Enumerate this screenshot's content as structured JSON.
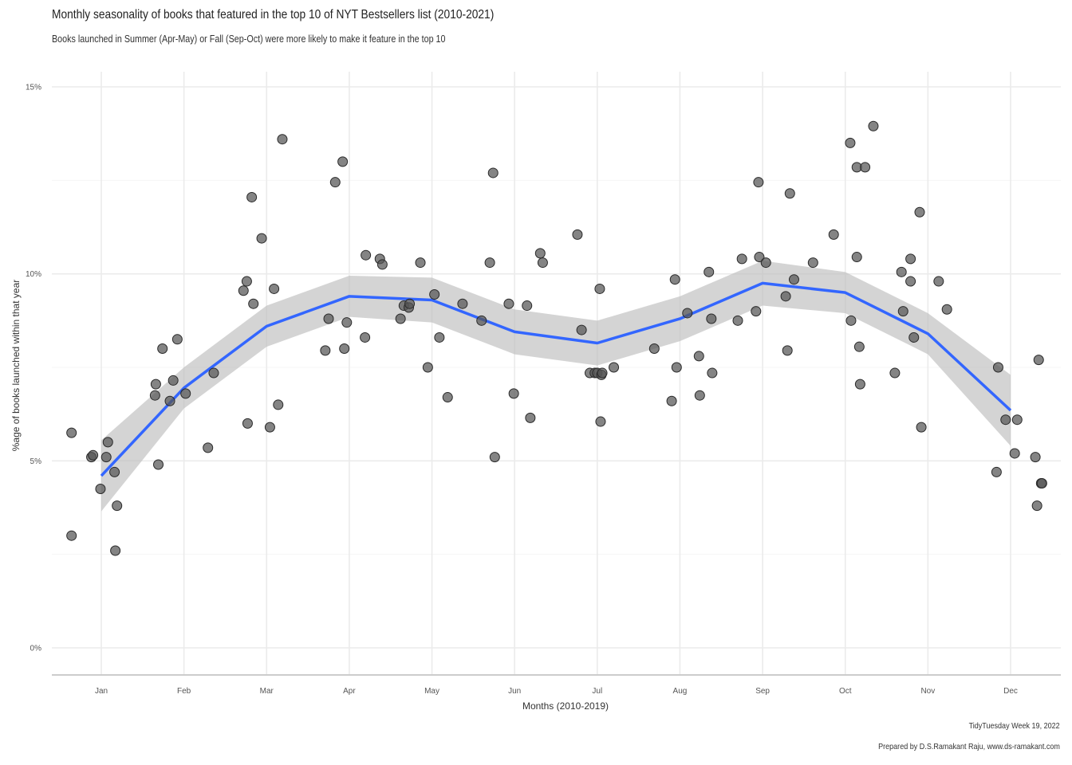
{
  "chart_data": {
    "type": "scatter",
    "title": "Monthly seasonality of books that featured in the top 10 of NYT Bestsellers list (2010-2021)",
    "subtitle": "Books launched in Summer (Apr-May) or Fall (Sep-Oct) were more likely to make it feature in the top 10",
    "xlabel": "Months (2010-2019)",
    "ylabel": "%age of books launched within that year",
    "caption": [
      "TidyTuesday Week 19, 2022",
      "Prepared by D.S.Ramakant Raju, www.ds-ramakant.com"
    ],
    "x_categories": [
      "Jan",
      "Feb",
      "Mar",
      "Apr",
      "May",
      "Jun",
      "Jul",
      "Aug",
      "Sep",
      "Oct",
      "Nov",
      "Dec"
    ],
    "y_ticks": [
      "0%",
      "5%",
      "10%",
      "15%"
    ],
    "y_tick_values": [
      0,
      5,
      10,
      15
    ],
    "ylim": [
      -0.7,
      15.5
    ],
    "xlim": [
      0.4,
      12.6
    ],
    "grid": true,
    "colors": {
      "points": "#555555",
      "trend": "#3366ff",
      "ribbon": "#bdbdbd",
      "grid": "#ebebeb"
    },
    "points": [
      [
        0.64,
        5.75
      ],
      [
        0.64,
        3.0
      ],
      [
        0.88,
        5.1
      ],
      [
        0.9,
        5.15
      ],
      [
        0.99,
        4.25
      ],
      [
        1.06,
        5.1
      ],
      [
        1.08,
        5.5
      ],
      [
        1.16,
        4.7
      ],
      [
        1.17,
        2.6
      ],
      [
        1.19,
        3.8
      ],
      [
        1.65,
        6.75
      ],
      [
        1.66,
        7.05
      ],
      [
        1.69,
        4.9
      ],
      [
        1.74,
        8.0
      ],
      [
        1.83,
        6.6
      ],
      [
        1.87,
        7.15
      ],
      [
        1.92,
        8.25
      ],
      [
        2.02,
        6.8
      ],
      [
        2.29,
        5.35
      ],
      [
        2.36,
        7.35
      ],
      [
        2.72,
        9.55
      ],
      [
        2.76,
        9.8
      ],
      [
        2.77,
        6.0
      ],
      [
        2.82,
        12.05
      ],
      [
        2.84,
        9.2
      ],
      [
        2.94,
        10.95
      ],
      [
        3.04,
        5.9
      ],
      [
        3.09,
        9.6
      ],
      [
        3.14,
        6.5
      ],
      [
        3.19,
        13.6
      ],
      [
        3.71,
        7.95
      ],
      [
        3.75,
        8.8
      ],
      [
        3.83,
        12.45
      ],
      [
        3.92,
        13.0
      ],
      [
        3.94,
        8.0
      ],
      [
        3.97,
        8.7
      ],
      [
        4.19,
        8.3
      ],
      [
        4.2,
        10.5
      ],
      [
        4.37,
        10.4
      ],
      [
        4.4,
        10.25
      ],
      [
        4.62,
        8.8
      ],
      [
        4.66,
        9.15
      ],
      [
        4.72,
        9.1
      ],
      [
        4.73,
        9.2
      ],
      [
        4.86,
        10.3
      ],
      [
        4.95,
        7.5
      ],
      [
        5.03,
        9.45
      ],
      [
        5.09,
        8.3
      ],
      [
        5.19,
        6.7
      ],
      [
        5.37,
        9.2
      ],
      [
        5.6,
        8.75
      ],
      [
        5.7,
        10.3
      ],
      [
        5.74,
        12.7
      ],
      [
        5.76,
        5.1
      ],
      [
        5.93,
        9.2
      ],
      [
        5.99,
        6.8
      ],
      [
        6.15,
        9.15
      ],
      [
        6.19,
        6.15
      ],
      [
        6.31,
        10.55
      ],
      [
        6.34,
        10.3
      ],
      [
        6.76,
        11.05
      ],
      [
        6.81,
        8.5
      ],
      [
        6.91,
        7.35
      ],
      [
        6.97,
        7.35
      ],
      [
        7.0,
        7.35
      ],
      [
        7.03,
        9.6
      ],
      [
        7.05,
        7.3
      ],
      [
        7.06,
        7.35
      ],
      [
        7.04,
        6.05
      ],
      [
        7.2,
        7.5
      ],
      [
        7.69,
        8.0
      ],
      [
        7.9,
        6.6
      ],
      [
        7.94,
        9.85
      ],
      [
        7.96,
        7.5
      ],
      [
        8.09,
        8.95
      ],
      [
        8.23,
        7.8
      ],
      [
        8.24,
        6.75
      ],
      [
        8.35,
        10.05
      ],
      [
        8.38,
        8.8
      ],
      [
        8.39,
        7.35
      ],
      [
        8.7,
        8.75
      ],
      [
        8.75,
        10.4
      ],
      [
        8.92,
        9.0
      ],
      [
        8.95,
        12.45
      ],
      [
        8.96,
        10.45
      ],
      [
        9.04,
        10.3
      ],
      [
        9.28,
        9.4
      ],
      [
        9.3,
        7.95
      ],
      [
        9.33,
        12.15
      ],
      [
        9.38,
        9.85
      ],
      [
        9.61,
        10.3
      ],
      [
        9.86,
        11.05
      ],
      [
        10.06,
        13.5
      ],
      [
        10.07,
        8.75
      ],
      [
        10.14,
        12.85
      ],
      [
        10.14,
        10.45
      ],
      [
        10.17,
        8.05
      ],
      [
        10.18,
        7.05
      ],
      [
        10.24,
        12.85
      ],
      [
        10.34,
        13.95
      ],
      [
        10.6,
        7.35
      ],
      [
        10.68,
        10.05
      ],
      [
        10.7,
        9.0
      ],
      [
        10.79,
        9.8
      ],
      [
        10.79,
        10.4
      ],
      [
        10.83,
        8.3
      ],
      [
        10.9,
        11.65
      ],
      [
        10.92,
        5.9
      ],
      [
        11.13,
        9.8
      ],
      [
        11.23,
        9.05
      ],
      [
        11.83,
        4.7
      ],
      [
        11.85,
        7.5
      ],
      [
        11.94,
        6.1
      ],
      [
        12.05,
        5.2
      ],
      [
        12.08,
        6.1
      ],
      [
        12.3,
        5.1
      ],
      [
        12.32,
        3.8
      ],
      [
        12.34,
        7.7
      ],
      [
        12.37,
        4.4
      ],
      [
        12.38,
        4.4
      ]
    ],
    "trend": {
      "x": [
        1,
        2,
        3,
        4,
        5,
        6,
        7,
        8,
        9,
        10,
        11,
        12
      ],
      "y": [
        4.6,
        6.95,
        8.6,
        9.4,
        9.3,
        8.45,
        8.15,
        8.8,
        9.75,
        9.5,
        8.4,
        6.35
      ],
      "lower": [
        3.65,
        6.4,
        8.05,
        8.85,
        8.7,
        7.85,
        7.55,
        8.2,
        9.15,
        8.95,
        7.85,
        5.4
      ],
      "upper": [
        5.55,
        7.5,
        9.15,
        9.95,
        9.9,
        9.05,
        8.75,
        9.4,
        10.35,
        10.05,
        8.95,
        7.3
      ]
    }
  }
}
